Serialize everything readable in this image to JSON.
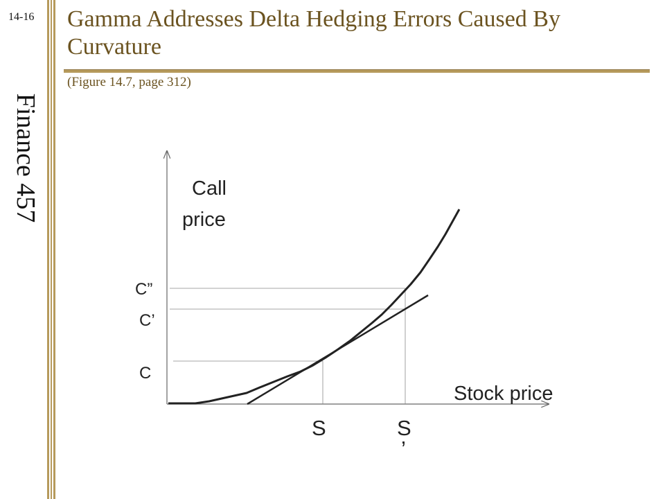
{
  "slide_number": "14-16",
  "course": "Finance 457",
  "title": "Gamma Addresses Delta Hedging Errors Caused By Curvature",
  "subtitle": "(Figure 14.7, page 312)",
  "diagram": {
    "y_axis_label": [
      "Call",
      "price"
    ],
    "x_axis_label": "Stock price",
    "price_labels": {
      "c2": "C”",
      "c1": "C’",
      "c0": "C"
    },
    "stock_labels": {
      "s0": "S",
      "s1": "S",
      "s1_mark": "’"
    }
  },
  "colors": {
    "accent": "#b69a5c",
    "title": "#6b5320"
  }
}
